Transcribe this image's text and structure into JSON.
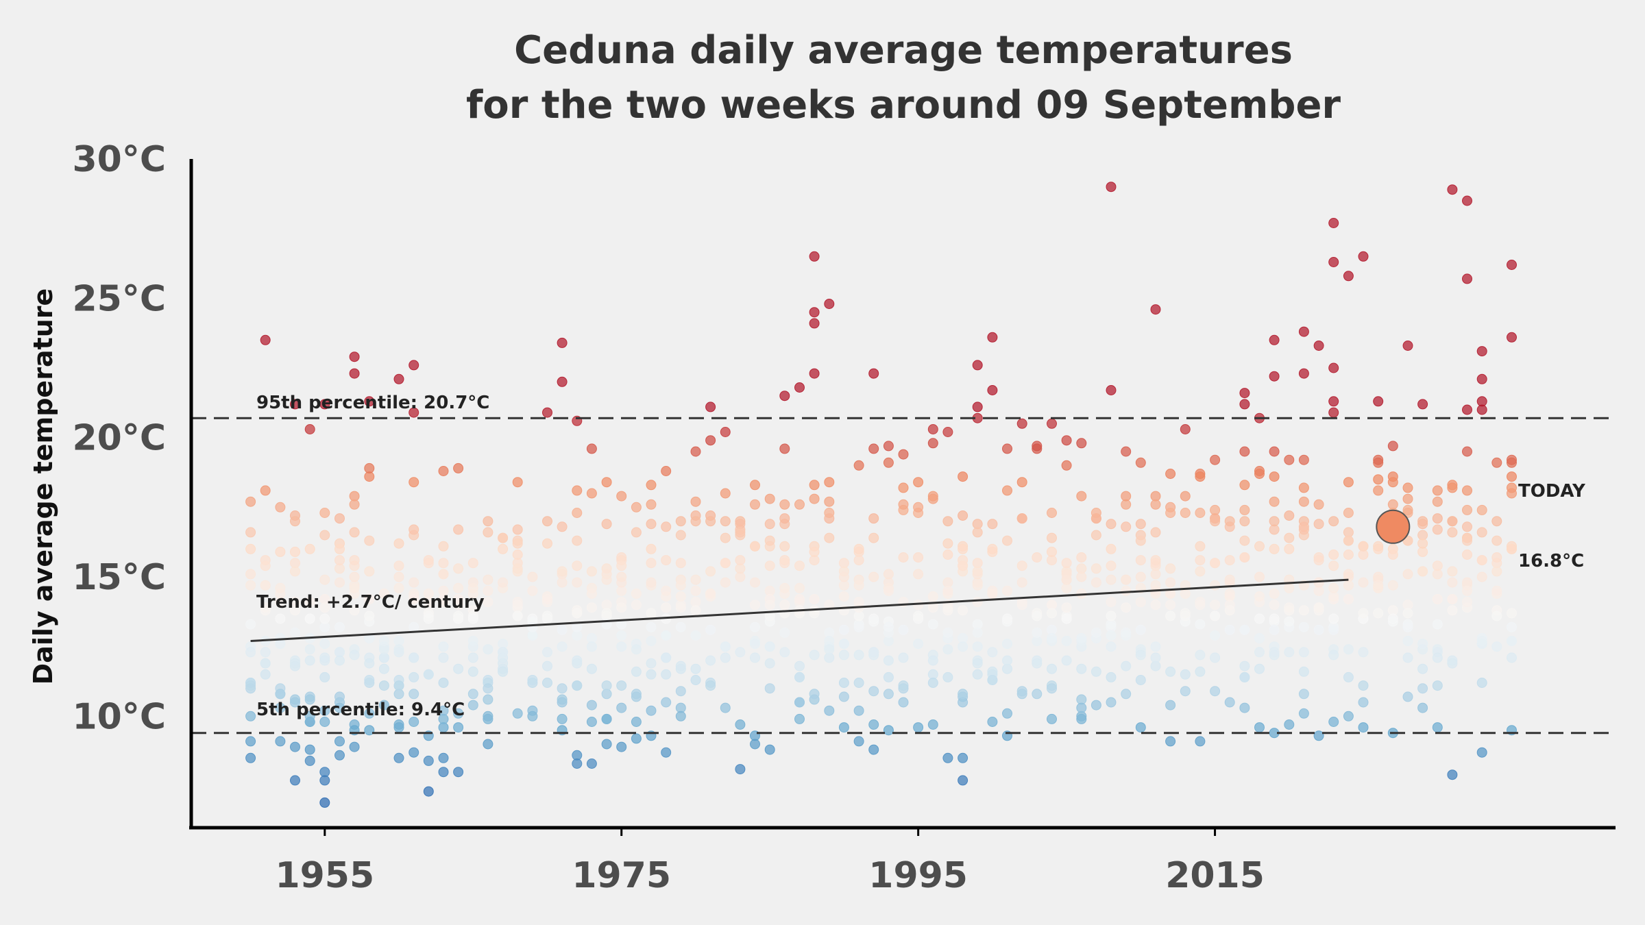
{
  "chart_data": {
    "type": "scatter",
    "title_line1": "Ceduna daily average temperatures",
    "title_line2": "for the two weeks around 09 September",
    "ylabel": "Daily average temperature",
    "xlabel": "",
    "xlim": [
      1946,
      2042
    ],
    "ylim": [
      6.0,
      30.0
    ],
    "x_ticks": [
      1955,
      1975,
      1995,
      2015
    ],
    "y_ticks": [
      {
        "value": 10,
        "label": "10°C"
      },
      {
        "value": 15,
        "label": "15°C"
      },
      {
        "value": 20,
        "label": "20°C"
      },
      {
        "value": 25,
        "label": "25°C"
      },
      {
        "value": 30,
        "label": "30°C"
      }
    ],
    "grid": false,
    "colormap": "red-white-blue (diverging by temperature)",
    "percentile_95": {
      "value": 20.7,
      "label": "95th percentile: 20.7°C"
    },
    "percentile_5": {
      "value": 9.4,
      "label": "5th percentile: 9.4°C"
    },
    "trend": {
      "label": "Trend: +2.7°C/ century",
      "start": [
        1950,
        12.7
      ],
      "end": [
        2024,
        14.9
      ]
    },
    "today": {
      "label": "TODAY",
      "value_label": "16.8°C",
      "year": 2027,
      "value": 16.8
    },
    "colors": {
      "hot": "#c0404d",
      "warm": "#ef8a62",
      "neutral": "#f7f7f7",
      "cool": "#92c5de",
      "cold": "#4a7bb7",
      "today": "#ef8a62",
      "axis": "#000000",
      "dashed": "#333333"
    },
    "series": [
      {
        "notable_points_hot": [
          [
            1951,
            23.5
          ],
          [
            1953,
            21.2
          ],
          [
            1955,
            21.2
          ],
          [
            1957,
            22.9
          ],
          [
            1957,
            22.3
          ],
          [
            1958,
            21.3
          ],
          [
            1960,
            22.1
          ],
          [
            1961,
            22.6
          ],
          [
            1961,
            20.9
          ],
          [
            1970,
            20.9
          ],
          [
            1971,
            23.4
          ],
          [
            1971,
            22.0
          ],
          [
            1972,
            20.6
          ],
          [
            1981,
            21.1
          ],
          [
            1986,
            21.5
          ],
          [
            1987,
            21.8
          ],
          [
            1988,
            26.5
          ],
          [
            1988,
            24.5
          ],
          [
            1988,
            24.1
          ],
          [
            1988,
            22.3
          ],
          [
            1989,
            24.8
          ],
          [
            1992,
            22.3
          ],
          [
            1999,
            22.6
          ],
          [
            1999,
            21.1
          ],
          [
            1999,
            20.7
          ],
          [
            2000,
            23.6
          ],
          [
            2000,
            21.7
          ],
          [
            2004,
            20.5
          ],
          [
            2008,
            29.0
          ],
          [
            2008,
            21.7
          ],
          [
            2011,
            24.6
          ],
          [
            2017,
            21.6
          ],
          [
            2017,
            21.2
          ],
          [
            2018,
            20.7
          ],
          [
            2019,
            23.5
          ],
          [
            2019,
            22.2
          ],
          [
            2021,
            22.3
          ],
          [
            2021,
            23.8
          ],
          [
            2022,
            23.3
          ],
          [
            2023,
            20.9
          ],
          [
            2023,
            21.3
          ],
          [
            2023,
            22.5
          ],
          [
            2023,
            26.3
          ],
          [
            2023,
            27.7
          ],
          [
            2024,
            25.8
          ],
          [
            2025,
            26.5
          ],
          [
            2026,
            21.3
          ],
          [
            2028,
            23.3
          ],
          [
            2029,
            21.2
          ],
          [
            2031,
            28.9
          ],
          [
            2032,
            28.5
          ],
          [
            2032,
            25.7
          ],
          [
            2032,
            21.0
          ],
          [
            2033,
            23.1
          ],
          [
            2033,
            22.1
          ],
          [
            2033,
            21.3
          ],
          [
            2033,
            21.0
          ],
          [
            2035,
            26.2
          ],
          [
            2035,
            23.6
          ]
        ]
      },
      {
        "notable_points_cold": [
          [
            1950,
            9.1
          ],
          [
            1950,
            8.5
          ],
          [
            1952,
            9.1
          ],
          [
            1953,
            7.7
          ],
          [
            1953,
            8.9
          ],
          [
            1954,
            8.4
          ],
          [
            1954,
            8.8
          ],
          [
            1955,
            8.0
          ],
          [
            1955,
            7.7
          ],
          [
            1955,
            6.9
          ],
          [
            1956,
            9.1
          ],
          [
            1956,
            8.6
          ],
          [
            1957,
            8.9
          ],
          [
            1957,
            9.5
          ],
          [
            1958,
            9.5
          ],
          [
            1960,
            8.5
          ],
          [
            1961,
            8.7
          ],
          [
            1962,
            8.4
          ],
          [
            1962,
            7.3
          ],
          [
            1962,
            9.3
          ],
          [
            1963,
            8.5
          ],
          [
            1963,
            8.0
          ],
          [
            1964,
            8.0
          ],
          [
            1966,
            9.0
          ],
          [
            1971,
            9.5
          ],
          [
            1972,
            8.6
          ],
          [
            1972,
            8.3
          ],
          [
            1973,
            8.3
          ],
          [
            1974,
            9.0
          ],
          [
            1975,
            8.9
          ],
          [
            1976,
            9.2
          ],
          [
            1977,
            9.3
          ],
          [
            1978,
            8.7
          ],
          [
            1983,
            8.1
          ],
          [
            1984,
            9.3
          ],
          [
            1984,
            9.0
          ],
          [
            1985,
            8.8
          ],
          [
            1991,
            9.1
          ],
          [
            1992,
            8.8
          ],
          [
            1993,
            9.5
          ],
          [
            1997,
            8.5
          ],
          [
            1998,
            8.5
          ],
          [
            1998,
            7.7
          ],
          [
            2001,
            9.3
          ],
          [
            2010,
            9.6
          ],
          [
            2012,
            9.1
          ],
          [
            2014,
            9.1
          ],
          [
            2018,
            9.6
          ],
          [
            2019,
            9.4
          ],
          [
            2022,
            9.3
          ],
          [
            2025,
            9.6
          ],
          [
            2027,
            9.4
          ],
          [
            2030,
            9.6
          ],
          [
            2031,
            7.9
          ],
          [
            2033,
            8.7
          ],
          [
            2035,
            9.5
          ]
        ]
      }
    ]
  }
}
